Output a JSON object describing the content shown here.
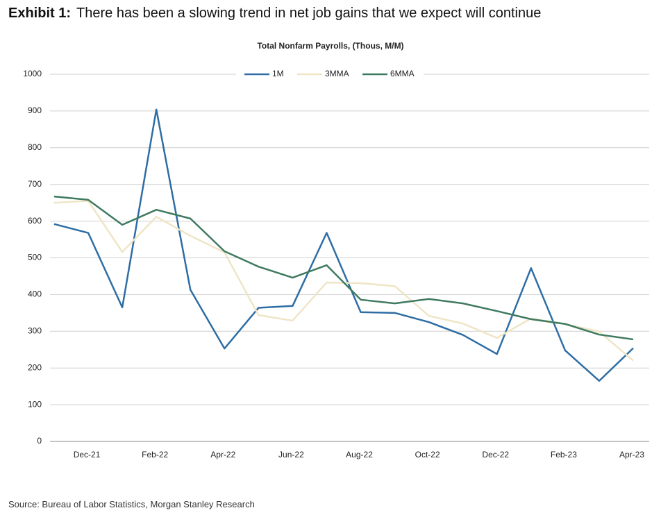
{
  "header": {
    "label": "Exhibit 1:",
    "title": "There has been a slowing trend in net job gains that we expect will continue"
  },
  "chart_data": {
    "type": "line",
    "title": "Total Nonfarm Payrolls, (Thous, M/M)",
    "categories": [
      null,
      "Dec-21",
      null,
      "Feb-22",
      null,
      "Apr-22",
      null,
      "Jun-22",
      null,
      "Aug-22",
      null,
      "Oct-22",
      null,
      "Dec-22",
      null,
      "Feb-23",
      null,
      "Apr-23"
    ],
    "series": [
      {
        "name": "1M",
        "color": "#2e6da4",
        "values": [
          592,
          568,
          365,
          904,
          413,
          253,
          364,
          369,
          568,
          352,
          350,
          325,
          290,
          238,
          472,
          248,
          165,
          254
        ]
      },
      {
        "name": "3MMA",
        "color": "#efe5c6",
        "values": [
          650,
          655,
          516,
          612,
          560,
          515,
          344,
          329,
          433,
          431,
          423,
          342,
          321,
          282,
          335,
          320,
          299,
          220
        ]
      },
      {
        "name": "6MMA",
        "color": "#3f7a5f",
        "values": [
          667,
          658,
          590,
          631,
          607,
          518,
          476,
          446,
          480,
          386,
          376,
          388,
          376,
          355,
          333,
          320,
          291,
          278
        ]
      }
    ],
    "ylim": [
      0,
      1000
    ],
    "yticks": [
      0,
      100,
      200,
      300,
      400,
      500,
      600,
      700,
      800,
      900,
      1000
    ],
    "grid": true,
    "legend": "top"
  },
  "footer": {
    "source": "Source: Bureau of Labor Statistics, Morgan Stanley Research"
  }
}
